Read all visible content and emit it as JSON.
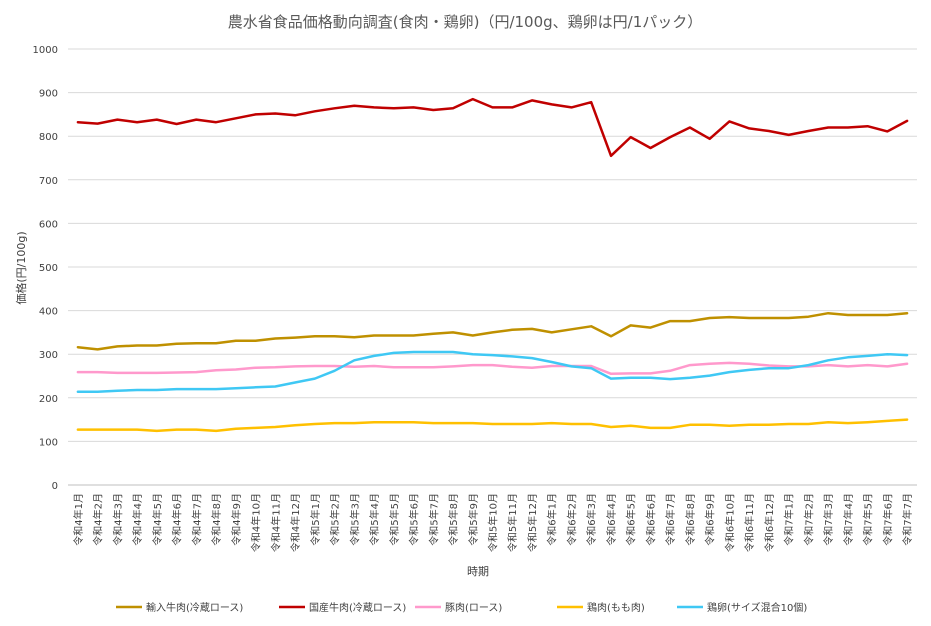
{
  "chart_data": {
    "type": "line",
    "title": "農水省食品価格動向調査(食肉・鶏卵)（円/100g、鶏卵は円/1パック）",
    "xlabel": "時期",
    "ylabel": "価格(円/100g)",
    "ylim": [
      0,
      1000
    ],
    "yticks": [
      0,
      100,
      200,
      300,
      400,
      500,
      600,
      700,
      800,
      900,
      1000
    ],
    "grid": true,
    "legend": "bottom",
    "categories": [
      "令和4年1月",
      "令和4年2月",
      "令和4年3月",
      "令和4年4月",
      "令和4年5月",
      "令和4年6月",
      "令和4年7月",
      "令和4年8月",
      "令和4年9月",
      "令和4年10月",
      "令和4年11月",
      "令和4年12月",
      "令和5年1月",
      "令和5年2月",
      "令和5年3月",
      "令和5年4月",
      "令和5年5月",
      "令和5年6月",
      "令和5年7月",
      "令和5年8月",
      "令和5年9月",
      "令和5年10月",
      "令和5年11月",
      "令和5年12月",
      "令和6年1月",
      "令和6年2月",
      "令和6年3月",
      "令和6年4月",
      "令和6年5月",
      "令和6年6月",
      "令和6年7月",
      "令和6年8月",
      "令和6年9月",
      "令和6年10月",
      "令和6年11月",
      "令和6年12月",
      "令和7年1月",
      "令和7年2月",
      "令和7年3月",
      "令和7年4月",
      "令和7年5月",
      "令和7年6月",
      "令和7年7月"
    ],
    "series": [
      {
        "name": "輸入牛肉(冷蔵ロース)",
        "color": "#BF9000",
        "values": [
          316,
          311,
          318,
          320,
          320,
          324,
          325,
          325,
          331,
          331,
          336,
          338,
          341,
          341,
          339,
          343,
          343,
          343,
          347,
          350,
          343,
          350,
          356,
          358,
          350,
          357,
          364,
          341,
          366,
          361,
          376,
          376,
          383,
          385,
          383,
          383,
          383,
          386,
          394,
          390,
          390,
          390,
          394
        ]
      },
      {
        "name": "国産牛肉(冷蔵ロース)",
        "color": "#C00000",
        "values": [
          832,
          829,
          838,
          832,
          838,
          828,
          838,
          832,
          841,
          850,
          852,
          848,
          857,
          864,
          870,
          866,
          864,
          866,
          860,
          864,
          885,
          866,
          866,
          882,
          873,
          866,
          878,
          755,
          798,
          773,
          798,
          820,
          794,
          834,
          818,
          812,
          803,
          812,
          820,
          820,
          823,
          811,
          835
        ]
      },
      {
        "name": "豚肉(ロース)",
        "color": "#FF99CC",
        "values": [
          259,
          259,
          257,
          257,
          257,
          258,
          259,
          263,
          265,
          269,
          270,
          272,
          273,
          273,
          271,
          273,
          270,
          270,
          270,
          272,
          275,
          275,
          271,
          269,
          273,
          273,
          273,
          255,
          256,
          256,
          262,
          275,
          278,
          280,
          278,
          274,
          272,
          272,
          275,
          272,
          275,
          272,
          278
        ]
      },
      {
        "name": "鶏肉(もも肉)",
        "color": "#FFC000",
        "values": [
          127,
          127,
          127,
          127,
          124,
          127,
          127,
          124,
          129,
          131,
          133,
          137,
          140,
          142,
          142,
          144,
          144,
          144,
          142,
          142,
          142,
          140,
          140,
          140,
          142,
          140,
          140,
          133,
          136,
          131,
          131,
          138,
          138,
          136,
          138,
          138,
          140,
          140,
          144,
          142,
          144,
          147,
          150
        ]
      },
      {
        "name": "鶏卵(サイズ混合10個)",
        "color": "#3FC8F4",
        "values": [
          214,
          214,
          216,
          218,
          218,
          220,
          220,
          220,
          222,
          224,
          226,
          235,
          244,
          262,
          286,
          296,
          303,
          305,
          305,
          305,
          300,
          298,
          295,
          291,
          282,
          272,
          268,
          244,
          246,
          246,
          243,
          246,
          251,
          259,
          264,
          268,
          268,
          275,
          286,
          293,
          296,
          300,
          298
        ]
      }
    ]
  }
}
